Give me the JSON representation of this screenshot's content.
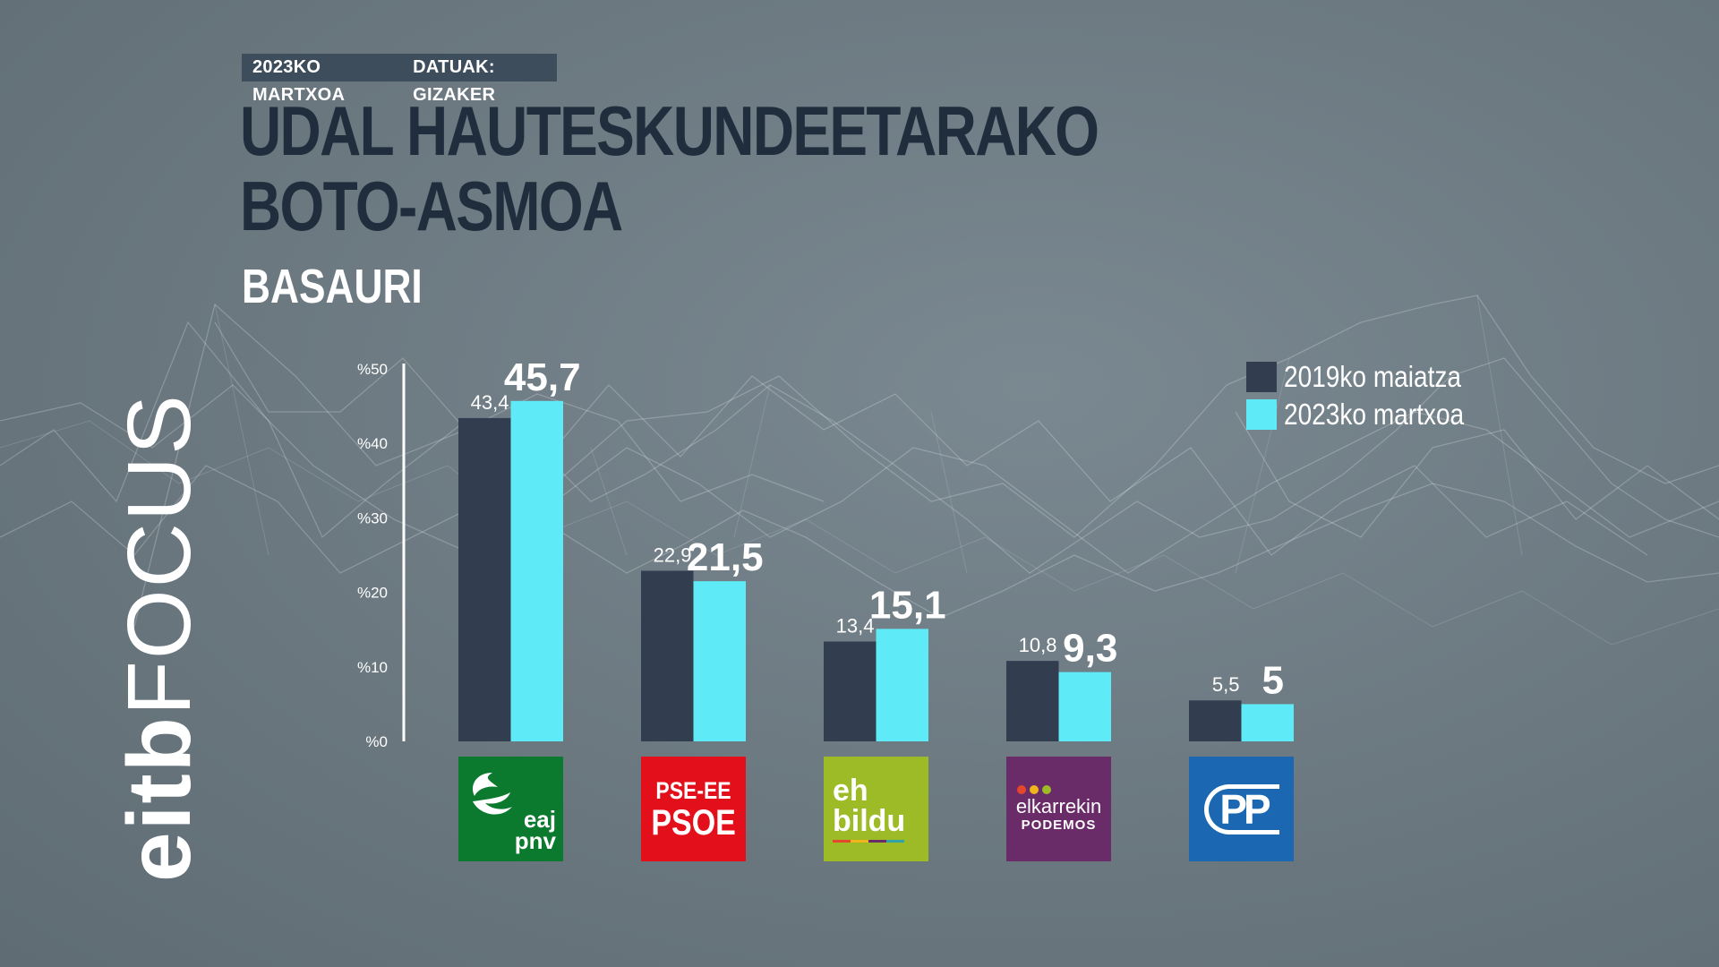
{
  "header": {
    "date": "2023KO MARTXOA",
    "source": "DATUAK: GIZAKER",
    "title_line1": "UDAL HAUTESKUNDEETARAKO",
    "title_line2": "BOTO-ASMOA",
    "subtitle": "BASAURI"
  },
  "brand": {
    "part1": "eitb",
    "part2": "FOCUS"
  },
  "colors": {
    "series2019": "#323e4f",
    "series2023": "#5eeaf7",
    "background": "#6b7880",
    "title": "#1f2d3d"
  },
  "legend": {
    "item1": "2019ko maiatza",
    "item2": "2023ko martxoa"
  },
  "logos": {
    "pnv": {
      "line1": "eaj",
      "line2": "pnv"
    },
    "psoe": {
      "line1": "PSE-EE",
      "line2": "PSOE"
    },
    "bildu": {
      "line1": "eh",
      "line2": "bildu"
    },
    "elkarrekin": {
      "line1": "elkarrekin",
      "line2": "PODEMOS"
    },
    "pp": {
      "line1": "PP"
    }
  },
  "chart_data": {
    "type": "bar",
    "categories": [
      "EAJ-PNV",
      "PSE-EE PSOE",
      "EH Bildu",
      "Elkarrekin Podemos",
      "PP"
    ],
    "series": [
      {
        "name": "2019ko maiatza",
        "values": [
          43.4,
          22.9,
          13.4,
          10.8,
          5.5
        ],
        "labels": [
          "43,4",
          "22,9",
          "13,4",
          "10,8",
          "5,5"
        ]
      },
      {
        "name": "2023ko martxoa",
        "values": [
          45.7,
          21.5,
          15.1,
          9.3,
          5
        ],
        "labels": [
          "45,7",
          "21,5",
          "15,1",
          "9,3",
          "5"
        ]
      }
    ],
    "yticks": [
      {
        "value": 0,
        "label": "%0"
      },
      {
        "value": 10,
        "label": "%10"
      },
      {
        "value": 20,
        "label": "%20"
      },
      {
        "value": 30,
        "label": "%30"
      },
      {
        "value": 40,
        "label": "%40"
      },
      {
        "value": 50,
        "label": "%50"
      }
    ],
    "ylim": [
      0,
      50
    ],
    "grid": false,
    "legend_position": "top-right"
  }
}
